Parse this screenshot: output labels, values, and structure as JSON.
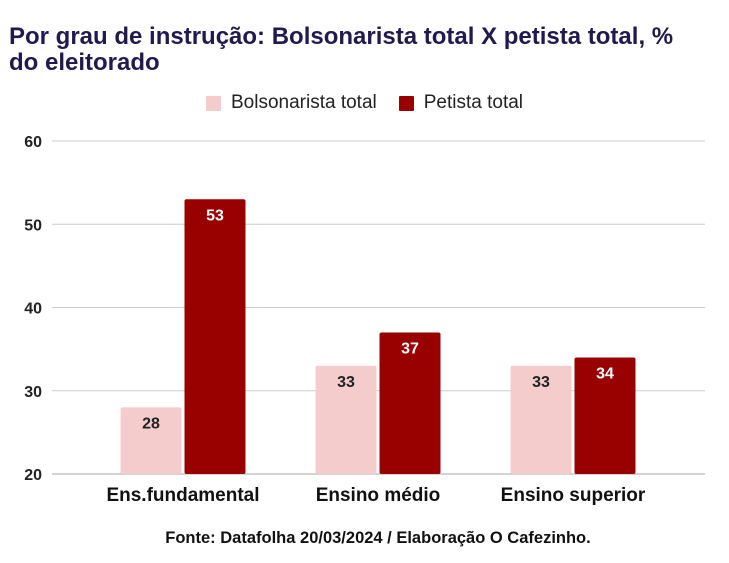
{
  "title": "Por grau de instrução: Bolsonarista total X petista total, % do eleitorado",
  "footer": "Fonte: Datafolha 20/03/2024 / Elaboração O Cafezinho.",
  "colors": {
    "bolsonarista": "#f4cccc",
    "petista": "#990000",
    "grid": "#cccccc",
    "text": "#222222"
  },
  "chart_data": {
    "type": "bar",
    "categories": [
      "Ens.fundamental",
      "Ensino médio",
      "Ensino superior"
    ],
    "series": [
      {
        "name": "Bolsonarista total",
        "values": [
          28,
          33,
          33
        ]
      },
      {
        "name": "Petista total",
        "values": [
          53,
          37,
          34
        ]
      }
    ],
    "ylim": [
      20,
      60
    ],
    "yticks": [
      20,
      30,
      40,
      50,
      60
    ],
    "grid": true,
    "legend_position": "top"
  }
}
